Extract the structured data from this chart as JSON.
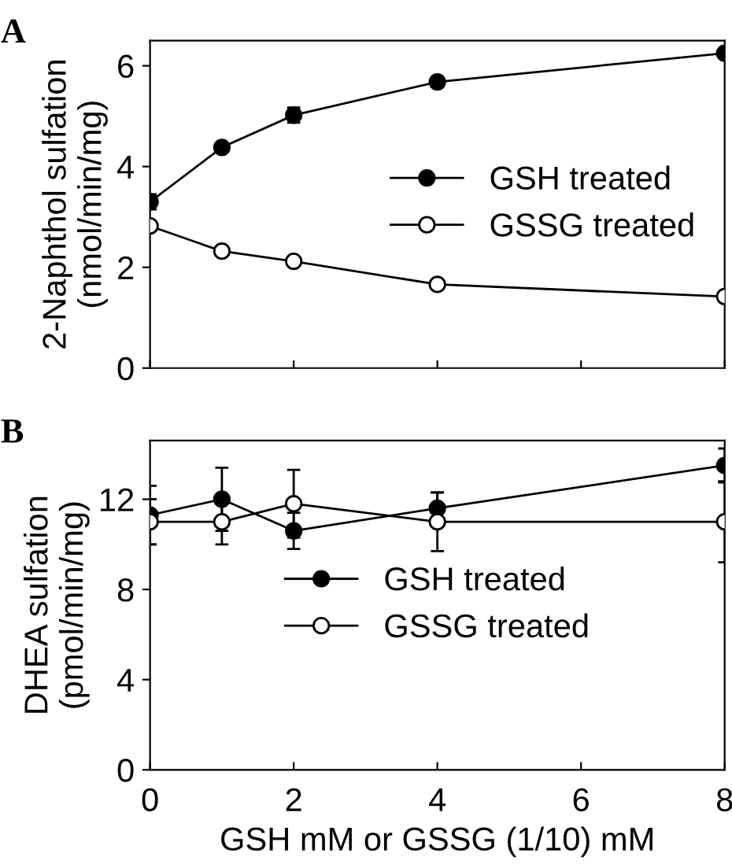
{
  "chart_data": [
    {
      "type": "line",
      "title": "A",
      "ylabel": "2-Naphthol sulfation\n(nmol/min/mg)",
      "x": [
        0,
        1,
        2,
        4,
        8
      ],
      "xlim": [
        0,
        8
      ],
      "xticks": [
        0,
        2,
        4,
        6,
        8
      ],
      "ylim": [
        0,
        6.5
      ],
      "yticks": [
        0,
        2,
        4,
        6
      ],
      "tick_labels": "y",
      "legend": "center right",
      "marker": "circle",
      "line_style": "solid",
      "grid": false,
      "series": [
        {
          "name": "GSH treated",
          "color": "#000000",
          "values": [
            3.3,
            4.38,
            5.02,
            5.68,
            6.25
          ],
          "errors": [
            0.15,
            null,
            0.15,
            0.1,
            null
          ]
        },
        {
          "name": "GSSG treated",
          "color": "#ffffff",
          "values": [
            2.82,
            2.32,
            2.12,
            1.66,
            1.42
          ]
        }
      ]
    },
    {
      "type": "line",
      "title": "B",
      "ylabel": "DHEA sulfation\n(pmol/min/mg)",
      "xlabel": "GSH mM or GSSG (1/10) mM",
      "x": [
        0,
        1,
        2,
        4,
        8
      ],
      "xlim": [
        0,
        8
      ],
      "xticks": [
        0,
        2,
        4,
        6,
        8
      ],
      "ylim": [
        0,
        14.6
      ],
      "yticks": [
        0,
        4,
        8,
        12
      ],
      "legend": "center",
      "marker": "circle",
      "line_style": "solid",
      "grid": false,
      "series": [
        {
          "name": "GSH treated",
          "color": "#000000",
          "values": [
            11.3,
            12.0,
            10.6,
            11.6,
            13.5
          ],
          "errors": [
            1.3,
            1.4,
            0.8,
            0.7,
            0.75
          ]
        },
        {
          "name": "GSSG treated",
          "color": "#ffffff",
          "values": [
            11.0,
            11.0,
            11.8,
            11.0,
            11.0
          ],
          "errors": [
            1.0,
            1.0,
            1.5,
            1.3,
            1.8
          ]
        }
      ]
    }
  ]
}
